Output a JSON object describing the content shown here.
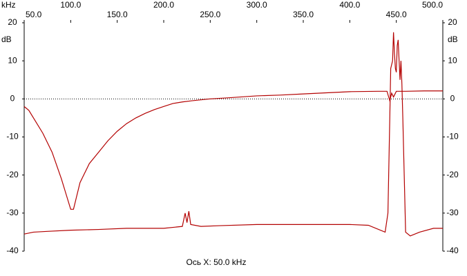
{
  "chart_data": {
    "type": "line",
    "x_unit": "kHz",
    "y_unit": "dB",
    "x_label": "Ось X: 50.0 kHz",
    "xlim": [
      50,
      500
    ],
    "xticks": [
      {
        "value": 50,
        "label": "50.0"
      },
      {
        "value": 100,
        "label": "100.0"
      },
      {
        "value": 150,
        "label": "150.0"
      },
      {
        "value": 200,
        "label": "200.0"
      },
      {
        "value": 250,
        "label": "250.0"
      },
      {
        "value": 300,
        "label": "300.0"
      },
      {
        "value": 350,
        "label": "350.0"
      },
      {
        "value": 400,
        "label": "400.0"
      },
      {
        "value": 450,
        "label": "450.0"
      },
      {
        "value": 500,
        "label": "500.0"
      }
    ],
    "ylim": [
      -40,
      20
    ],
    "yticks": [
      20,
      10,
      0,
      -10,
      -20,
      -30,
      -40
    ],
    "zero_line": true,
    "series": [
      {
        "color": "#b30000",
        "x": [
          50,
          55,
          60,
          70,
          80,
          90,
          95,
          100,
          103,
          106,
          110,
          120,
          130,
          140,
          150,
          160,
          170,
          180,
          190,
          200,
          210,
          220,
          230,
          250,
          270,
          300,
          325,
          350,
          375,
          400,
          430,
          440,
          443,
          445,
          447,
          450,
          460,
          480,
          500
        ],
        "values": [
          -2,
          -3,
          -5,
          -9,
          -14,
          -21,
          -25,
          -29,
          -29,
          -26,
          -22,
          -17,
          -14,
          -11,
          -8.5,
          -6.5,
          -5,
          -3.8,
          -2.8,
          -2,
          -1.2,
          -0.8,
          -0.5,
          0,
          0.3,
          0.8,
          1,
          1.3,
          1.6,
          1.9,
          2,
          2,
          -0.5,
          1.5,
          0.5,
          2,
          2,
          2.1,
          2.1
        ]
      },
      {
        "color": "#b30000",
        "x": [
          50,
          60,
          75,
          100,
          130,
          160,
          200,
          220,
          223,
          225,
          227,
          229,
          240,
          260,
          300,
          350,
          400,
          420,
          438,
          441,
          443,
          444,
          446,
          447,
          448,
          449,
          450,
          451,
          452,
          453,
          454,
          455,
          456,
          457,
          460,
          465,
          475,
          490,
          500
        ],
        "values": [
          -35.5,
          -35,
          -34.8,
          -34.5,
          -34.3,
          -34,
          -34,
          -33.5,
          -30,
          -32.5,
          -29.5,
          -33,
          -33.5,
          -33.3,
          -33,
          -33,
          -33,
          -33.2,
          -35,
          -30,
          -5,
          8,
          10,
          17.5,
          12,
          8,
          7,
          14,
          15.5,
          10,
          5,
          10,
          4,
          -5,
          -35,
          -36,
          -35,
          -34,
          -34
        ]
      }
    ]
  }
}
